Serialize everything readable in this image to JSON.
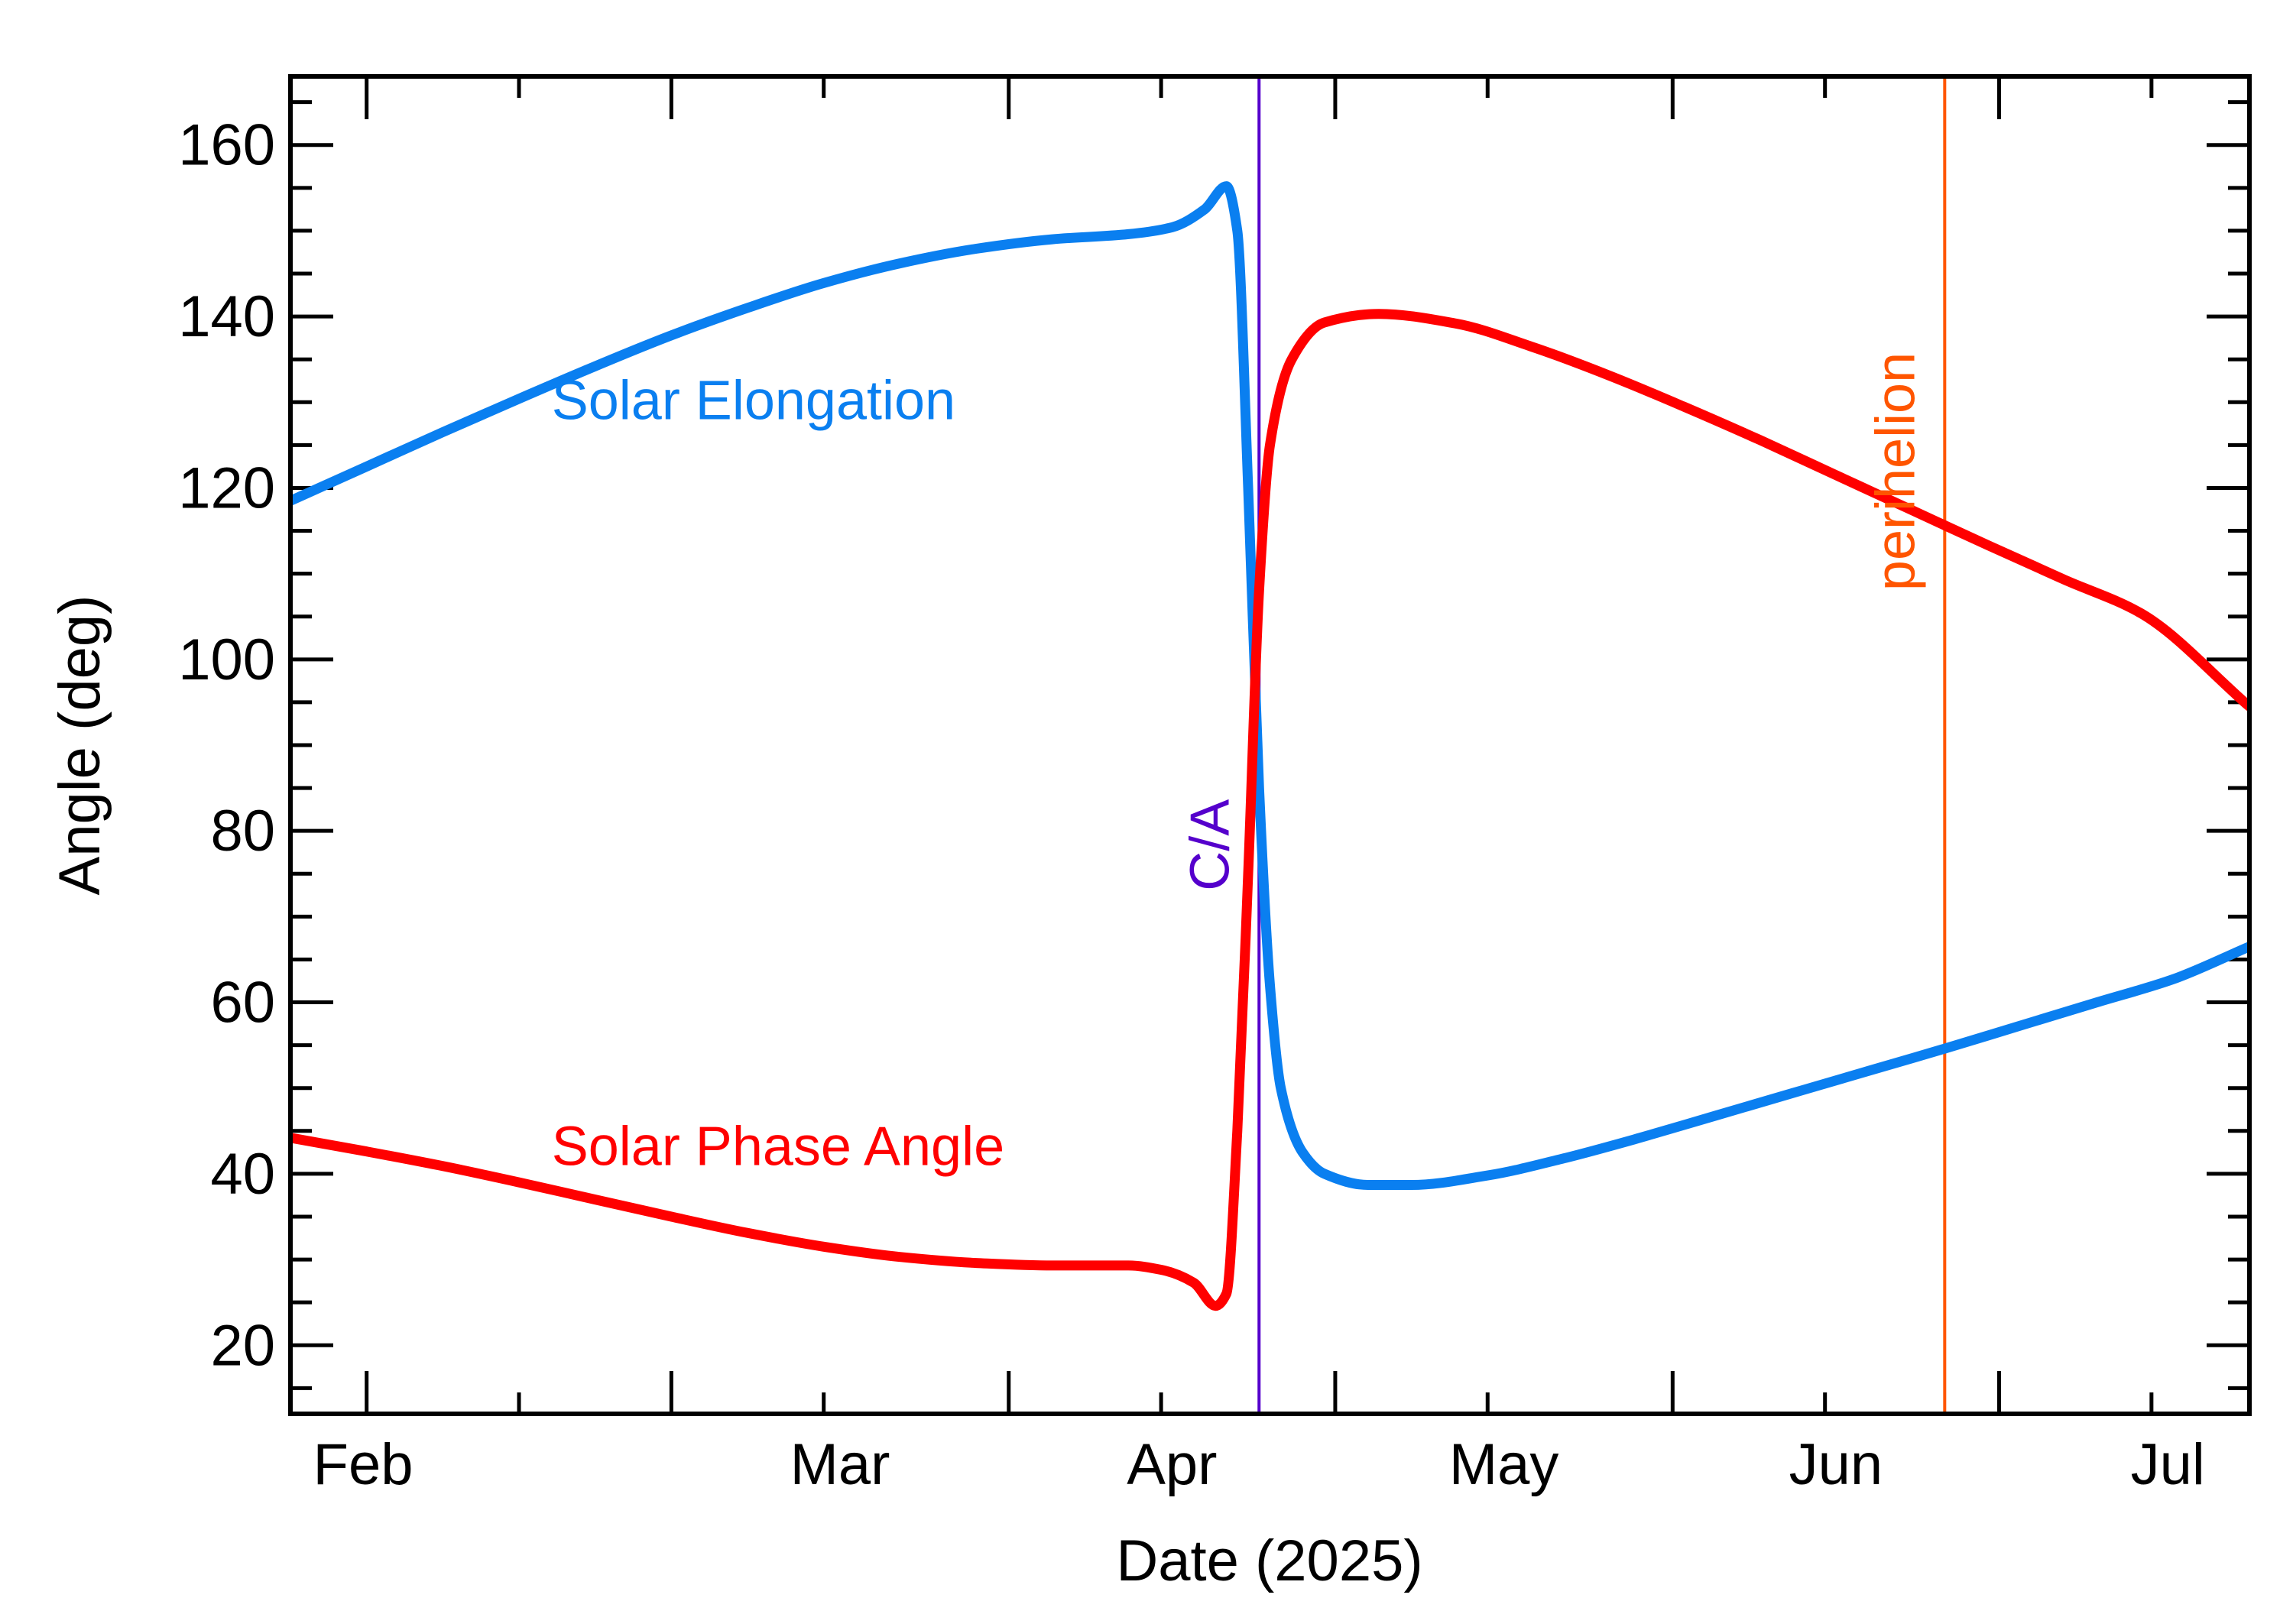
{
  "chart_data": {
    "type": "line",
    "xlabel": "Date (2025)",
    "ylabel": "Angle (deg)",
    "x_unit": "date",
    "xlim": [
      "2025-01-25",
      "2025-07-24"
    ],
    "ylim": [
      12,
      168
    ],
    "x_ticks": [
      {
        "label": "Feb",
        "date": "2025-02-01"
      },
      {
        "label": "Mar",
        "date": "2025-03-01"
      },
      {
        "label": "Apr",
        "date": "2025-04-01"
      },
      {
        "label": "May",
        "date": "2025-05-01"
      },
      {
        "label": "Jun",
        "date": "2025-06-01"
      },
      {
        "label": "Jul",
        "date": "2025-07-01"
      }
    ],
    "y_ticks": [
      20,
      40,
      60,
      80,
      100,
      120,
      140,
      160
    ],
    "grid": false,
    "legend": "inline labels",
    "series": [
      {
        "name": "Solar Elongation",
        "color": "#0a7ff0",
        "points": [
          [
            "2025-01-25",
            118.5
          ],
          [
            "2025-02-01",
            122.5
          ],
          [
            "2025-02-08",
            126.5
          ],
          [
            "2025-02-15",
            130.4
          ],
          [
            "2025-02-22",
            134.2
          ],
          [
            "2025-03-01",
            137.8
          ],
          [
            "2025-03-08",
            141.0
          ],
          [
            "2025-03-15",
            143.9
          ],
          [
            "2025-03-22",
            146.2
          ],
          [
            "2025-03-29",
            147.9
          ],
          [
            "2025-04-05",
            149.0
          ],
          [
            "2025-04-12",
            149.6
          ],
          [
            "2025-04-16",
            150.4
          ],
          [
            "2025-04-19",
            152.5
          ],
          [
            "2025-04-21",
            155.2
          ],
          [
            "2025-04-22",
            150.0
          ],
          [
            "2025-04-23",
            120.0
          ],
          [
            "2025-04-24",
            85.0
          ],
          [
            "2025-04-25",
            62.0
          ],
          [
            "2025-04-26",
            50.0
          ],
          [
            "2025-04-28",
            42.5
          ],
          [
            "2025-04-30",
            40.0
          ],
          [
            "2025-05-04",
            38.7
          ],
          [
            "2025-05-08",
            38.7
          ],
          [
            "2025-05-15",
            39.8
          ],
          [
            "2025-05-22",
            41.8
          ],
          [
            "2025-05-29",
            44.2
          ],
          [
            "2025-06-05",
            46.8
          ],
          [
            "2025-06-12",
            49.4
          ],
          [
            "2025-06-19",
            52.0
          ],
          [
            "2025-06-26",
            54.6
          ],
          [
            "2025-07-03",
            57.3
          ],
          [
            "2025-07-10",
            60.0
          ],
          [
            "2025-07-17",
            62.7
          ],
          [
            "2025-07-24",
            66.5
          ]
        ]
      },
      {
        "name": "Solar Phase Angle",
        "color": "#ff0000",
        "points": [
          [
            "2025-01-25",
            44.2
          ],
          [
            "2025-02-01",
            42.6
          ],
          [
            "2025-02-08",
            40.9
          ],
          [
            "2025-02-15",
            39.0
          ],
          [
            "2025-02-22",
            37.0
          ],
          [
            "2025-03-01",
            35.0
          ],
          [
            "2025-03-08",
            33.1
          ],
          [
            "2025-03-15",
            31.5
          ],
          [
            "2025-03-22",
            30.3
          ],
          [
            "2025-03-29",
            29.6
          ],
          [
            "2025-04-05",
            29.3
          ],
          [
            "2025-04-12",
            29.3
          ],
          [
            "2025-04-15",
            28.8
          ],
          [
            "2025-04-18",
            27.3
          ],
          [
            "2025-04-20",
            24.6
          ],
          [
            "2025-04-21",
            26.0
          ],
          [
            "2025-04-22",
            45.0
          ],
          [
            "2025-04-23",
            75.0
          ],
          [
            "2025-04-24",
            108.0
          ],
          [
            "2025-04-25",
            125.0
          ],
          [
            "2025-04-27",
            135.0
          ],
          [
            "2025-04-30",
            139.3
          ],
          [
            "2025-05-05",
            140.3
          ],
          [
            "2025-05-12",
            139.2
          ],
          [
            "2025-05-19",
            136.5
          ],
          [
            "2025-05-26",
            133.2
          ],
          [
            "2025-06-02",
            129.5
          ],
          [
            "2025-06-09",
            125.6
          ],
          [
            "2025-06-16",
            121.5
          ],
          [
            "2025-06-23",
            117.4
          ],
          [
            "2025-06-30",
            113.3
          ],
          [
            "2025-07-07",
            109.3
          ],
          [
            "2025-07-14",
            105.4
          ],
          [
            "2025-07-24",
            94.5
          ]
        ]
      }
    ],
    "series_labels": [
      {
        "text": "Solar Elongation",
        "color": "#0a7ff0",
        "anchor": [
          "2025-02-18",
          128
        ]
      },
      {
        "text": "Solar Phase Angle",
        "color": "#ff0000",
        "anchor": [
          "2025-02-18",
          41
        ]
      }
    ],
    "markers": [
      {
        "label": "C/A",
        "date": "2025-04-24",
        "color": "#5500cc"
      },
      {
        "label": "perihelion",
        "date": "2025-06-26",
        "color": "#ff5500"
      }
    ]
  }
}
